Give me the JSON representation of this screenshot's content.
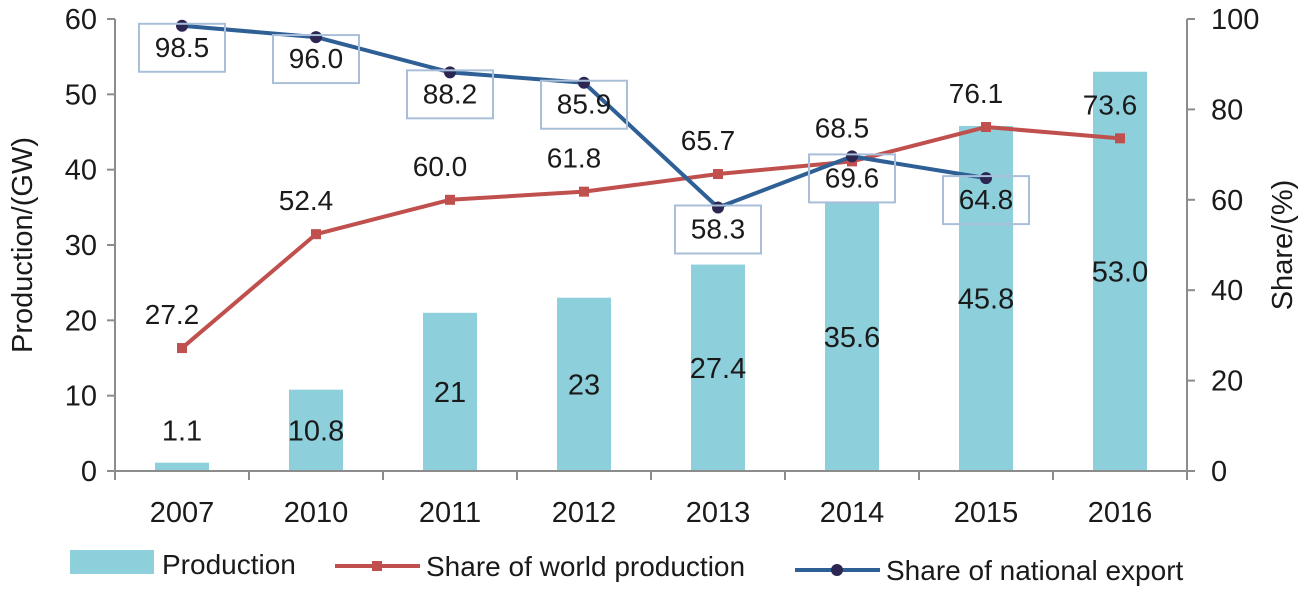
{
  "chart_data": {
    "type": "bar+line",
    "categories": [
      "2007",
      "2010",
      "2011",
      "2012",
      "2013",
      "2014",
      "2015",
      "2016"
    ],
    "bars": {
      "name": "Production",
      "values": [
        1.1,
        10.8,
        21,
        23,
        27.4,
        35.6,
        45.8,
        53.0
      ],
      "labels": [
        "1.1",
        "10.8",
        "21",
        "23",
        "27.4",
        "35.6",
        "45.8",
        "53.0"
      ],
      "color": "#8ecfdc"
    },
    "series": [
      {
        "name": "Share of world production",
        "values": [
          27.2,
          52.4,
          60.0,
          61.8,
          65.7,
          68.5,
          76.1,
          73.6
        ],
        "labels": [
          "27.2",
          "52.4",
          "60.0",
          "61.8",
          "65.7",
          "68.5",
          "76.1",
          "73.6"
        ],
        "color": "#c0504d",
        "marker": "square",
        "boxed_labels": false
      },
      {
        "name": "Share of national export",
        "values": [
          98.5,
          96.0,
          88.2,
          85.9,
          58.3,
          69.6,
          64.8,
          null
        ],
        "labels": [
          "98.5",
          "96.0",
          "88.2",
          "85.9",
          "58.3",
          "69.6",
          "64.8",
          null
        ],
        "color": "#2e5f95",
        "marker": "circle",
        "boxed_labels": true
      }
    ],
    "y_left": {
      "label": "Production/(GW)",
      "min": 0,
      "max": 60,
      "ticks": [
        0,
        10,
        20,
        30,
        40,
        50,
        60
      ]
    },
    "y_right": {
      "label": "Share/(%)",
      "min": 0,
      "max": 100,
      "ticks": [
        0,
        20,
        40,
        60,
        80,
        100
      ]
    },
    "legend": {
      "position": "bottom"
    },
    "grid": false
  }
}
